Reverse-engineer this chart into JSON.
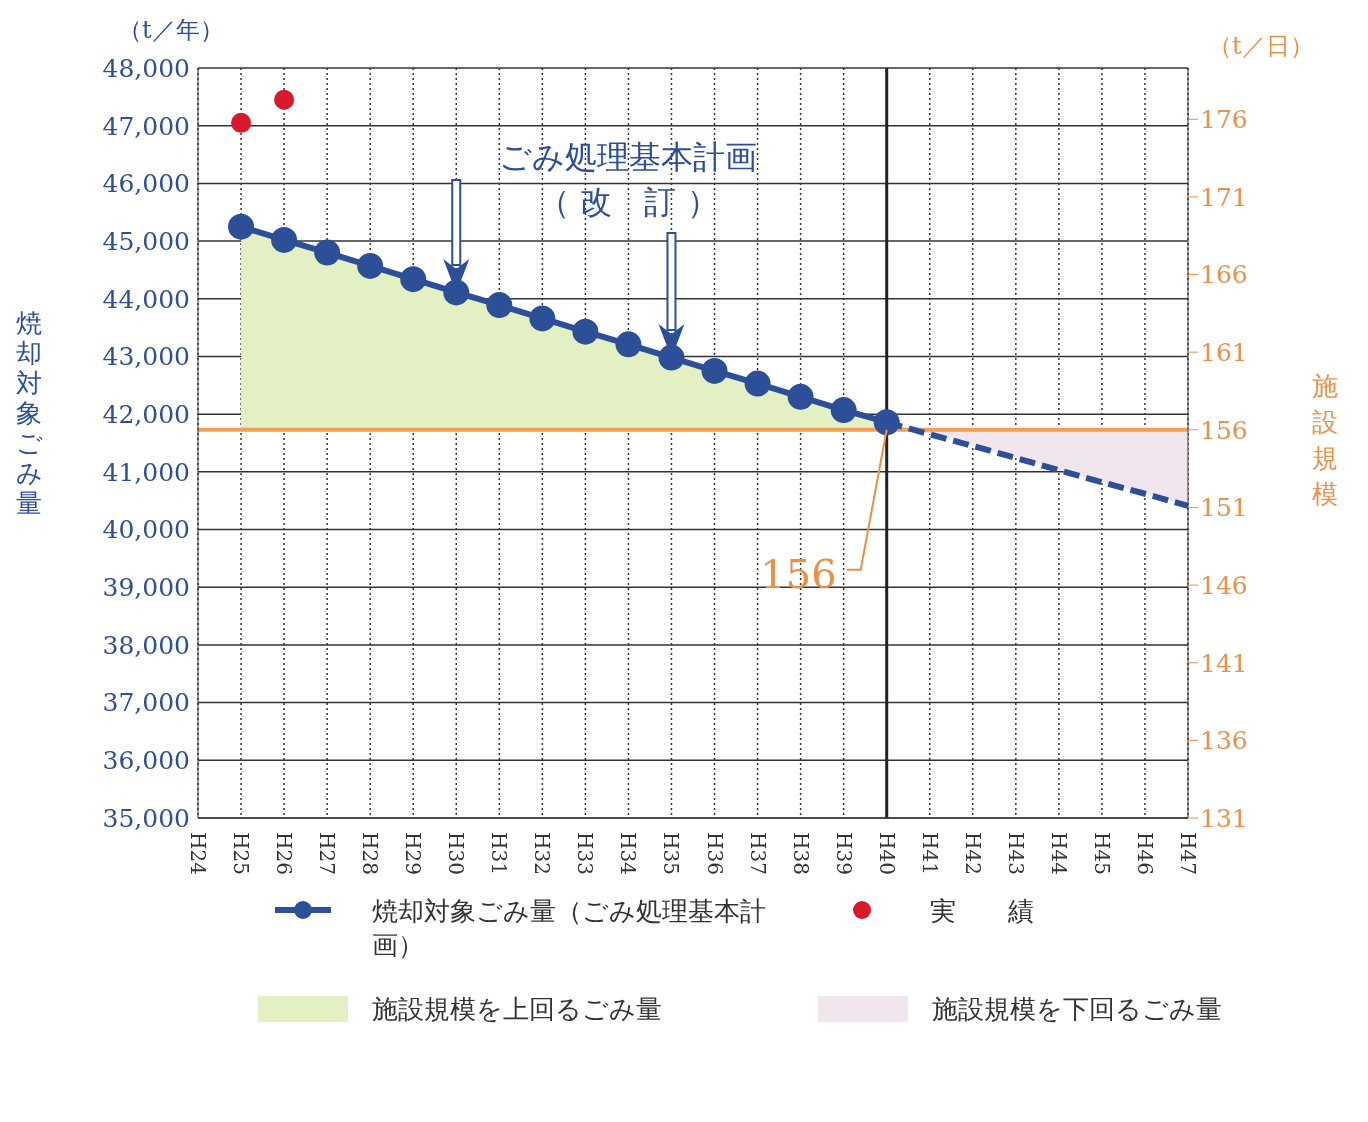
{
  "chart_data": {
    "type": "line",
    "ylabel": "焼却対象ごみ量",
    "y2label": "施設規模",
    "categories": [
      "H24",
      "H25",
      "H26",
      "H27",
      "H28",
      "H29",
      "H30",
      "H31",
      "H32",
      "H33",
      "H34",
      "H35",
      "H36",
      "H37",
      "H38",
      "H39",
      "H40",
      "H41",
      "H42",
      "H43",
      "H44",
      "H45",
      "H46",
      "H47"
    ],
    "series": [
      {
        "name": "焼却対象ごみ量（ごみ処理基本計画）",
        "color": "#2c4f98",
        "marker": "circle",
        "line_style": "solid",
        "values": [
          null,
          45250,
          45020,
          44800,
          44570,
          44340,
          44110,
          43890,
          43660,
          43430,
          43210,
          42980,
          42750,
          42530,
          42300,
          42070,
          41860,
          null,
          null,
          null,
          null,
          null,
          null,
          null
        ],
        "lower": [
          null,
          41730,
          41730,
          41730,
          41730,
          41730,
          41730,
          41730,
          41730,
          41730,
          41730,
          41730,
          41730,
          41730,
          41730,
          41730,
          41730,
          null,
          null,
          null,
          null,
          null,
          null,
          null
        ],
        "upper": [
          null,
          45250,
          45020,
          44800,
          44570,
          44340,
          44110,
          43890,
          43660,
          43430,
          43210,
          42980,
          42750,
          42530,
          42300,
          42070,
          41860,
          null,
          null,
          null,
          null,
          null,
          null,
          null
        ]
      },
      {
        "color": "#2c4f98",
        "marker": "none",
        "line_style": "dashed",
        "values": [
          null,
          null,
          null,
          null,
          null,
          null,
          null,
          null,
          null,
          null,
          null,
          null,
          null,
          null,
          null,
          null,
          41860,
          41650,
          41450,
          41240,
          41030,
          40820,
          40620,
          40410
        ],
        "lower": [
          null,
          null,
          null,
          null,
          null,
          null,
          null,
          null,
          null,
          null,
          null,
          null,
          null,
          null,
          null,
          null,
          41860,
          41650,
          41450,
          41240,
          41030,
          40820,
          40620,
          40410
        ],
        "upper": [
          null,
          null,
          null,
          null,
          null,
          null,
          null,
          null,
          null,
          null,
          null,
          null,
          null,
          null,
          null,
          null,
          41730,
          41730,
          41730,
          41730,
          41730,
          41730,
          41730,
          41730
        ]
      },
      {
        "type": "scatter",
        "name": "実　　績",
        "color": "#d8192b",
        "marker": "circle",
        "values": [
          null,
          47050,
          47450,
          null,
          null,
          null,
          null,
          null,
          null,
          null,
          null,
          null,
          null,
          null,
          null,
          null,
          null,
          null,
          null,
          null,
          null,
          null,
          null,
          null
        ]
      }
    ],
    "ylim": [
      35000,
      48000
    ],
    "yticks": [
      {
        "value": 35000,
        "label": "35,000"
      },
      {
        "value": 36000,
        "label": "36,000"
      },
      {
        "value": 37000,
        "label": "37,000"
      },
      {
        "value": 38000,
        "label": "38,000"
      },
      {
        "value": 39000,
        "label": "39,000"
      },
      {
        "value": 40000,
        "label": "40,000"
      },
      {
        "value": 41000,
        "label": "41,000"
      },
      {
        "value": 42000,
        "label": "42,000"
      },
      {
        "value": 43000,
        "label": "43,000"
      },
      {
        "value": 44000,
        "label": "44,000"
      },
      {
        "value": 45000,
        "label": "45,000"
      },
      {
        "value": 46000,
        "label": "46,000"
      },
      {
        "value": 47000,
        "label": "47,000"
      },
      {
        "value": 48000,
        "label": "48,000"
      }
    ],
    "y2lim": [
      131,
      179.3
    ],
    "y2ticks": [
      131,
      136,
      141,
      146,
      151,
      156,
      161,
      166,
      171,
      176
    ],
    "ref_lines": [
      {
        "axis": "y2",
        "value": 156,
        "label": "156",
        "color": "#f0a050",
        "line_style": "solid"
      },
      {
        "axis": "x",
        "value": "H40",
        "color": "#222222",
        "line_style": "solid"
      }
    ],
    "annotations": [
      "（t／年）",
      "（t／日）",
      "ごみ処理基本計画",
      "（ 改　訂 ）",
      "施設規模を上回るごみ量",
      "施設規模を下回るごみ量"
    ],
    "grid": true,
    "legend": "bottom"
  }
}
